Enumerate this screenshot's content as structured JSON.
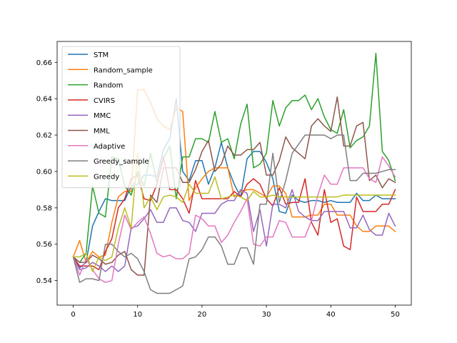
{
  "chart_data": {
    "type": "line",
    "title": "",
    "xlabel": "",
    "ylabel": "",
    "xlim": [
      -2.5,
      52.5
    ],
    "ylim": [
      0.5265,
      0.6715
    ],
    "grid": false,
    "legend_position": "top-left",
    "xticks": [
      0,
      10,
      20,
      30,
      40,
      50
    ],
    "yticks": [
      0.54,
      0.56,
      0.58,
      0.6,
      0.62,
      0.64,
      0.66
    ],
    "xtick_labels": [
      "0",
      "10",
      "20",
      "30",
      "40",
      "50"
    ],
    "ytick_labels": [
      "0.54",
      "0.56",
      "0.58",
      "0.60",
      "0.62",
      "0.64",
      "0.66"
    ],
    "x": [
      0,
      1,
      2,
      3,
      4,
      5,
      6,
      7,
      8,
      9,
      10,
      11,
      12,
      13,
      14,
      15,
      16,
      17,
      18,
      19,
      20,
      21,
      22,
      23,
      24,
      25,
      26,
      27,
      28,
      29,
      30,
      31,
      32,
      33,
      34,
      35,
      36,
      37,
      38,
      39,
      40,
      41,
      42,
      43,
      44,
      45,
      46,
      47,
      48,
      49,
      50
    ],
    "series": [
      {
        "name": "STM",
        "color": "#1f77b4",
        "values": [
          0.553,
          0.547,
          0.55,
          0.57,
          0.578,
          0.585,
          0.584,
          0.584,
          0.584,
          0.592,
          0.593,
          0.598,
          0.598,
          0.597,
          0.612,
          0.618,
          0.64,
          0.6,
          0.595,
          0.606,
          0.606,
          0.593,
          0.602,
          0.616,
          0.602,
          0.593,
          0.586,
          0.607,
          0.611,
          0.611,
          0.605,
          0.596,
          0.578,
          0.577,
          0.587,
          0.584,
          0.583,
          0.584,
          0.584,
          0.583,
          0.584,
          0.583,
          0.583,
          0.583,
          0.588,
          0.584,
          0.584,
          0.587,
          0.585,
          0.585,
          0.585
        ]
      },
      {
        "name": "Random_sample",
        "color": "#ff7f0e",
        "values": [
          0.553,
          0.562,
          0.55,
          0.556,
          0.553,
          0.554,
          0.572,
          0.586,
          0.589,
          0.589,
          0.645,
          0.645,
          0.638,
          0.629,
          0.625,
          0.623,
          0.635,
          0.633,
          0.584,
          0.591,
          0.596,
          0.6,
          0.602,
          0.602,
          0.602,
          0.586,
          0.589,
          0.59,
          0.59,
          0.588,
          0.586,
          0.592,
          0.592,
          0.588,
          0.575,
          0.575,
          0.575,
          0.576,
          0.576,
          0.582,
          0.582,
          0.576,
          0.576,
          0.576,
          0.57,
          0.567,
          0.567,
          0.57,
          0.57,
          0.57,
          0.567
        ]
      },
      {
        "name": "Random",
        "color": "#2ca02c",
        "values": [
          0.553,
          0.55,
          0.555,
          0.592,
          0.577,
          0.575,
          0.608,
          0.607,
          0.592,
          0.587,
          0.6,
          0.592,
          0.61,
          0.594,
          0.607,
          0.614,
          0.585,
          0.608,
          0.608,
          0.618,
          0.618,
          0.616,
          0.633,
          0.616,
          0.618,
          0.607,
          0.626,
          0.637,
          0.602,
          0.604,
          0.61,
          0.639,
          0.625,
          0.635,
          0.639,
          0.639,
          0.642,
          0.634,
          0.64,
          0.63,
          0.623,
          0.621,
          0.634,
          0.613,
          0.617,
          0.619,
          0.625,
          0.665,
          0.611,
          0.606,
          0.595
        ]
      },
      {
        "name": "CVIRS",
        "color": "#d62728",
        "values": [
          0.553,
          0.548,
          0.548,
          0.548,
          0.546,
          0.556,
          0.563,
          0.58,
          0.585,
          0.596,
          0.598,
          0.585,
          0.584,
          0.593,
          0.608,
          0.59,
          0.59,
          0.585,
          0.577,
          0.595,
          0.585,
          0.585,
          0.585,
          0.585,
          0.585,
          0.589,
          0.586,
          0.593,
          0.596,
          0.593,
          0.585,
          0.581,
          0.591,
          0.582,
          0.583,
          0.583,
          0.596,
          0.572,
          0.565,
          0.59,
          0.572,
          0.574,
          0.559,
          0.557,
          0.586,
          0.578,
          0.578,
          0.578,
          0.582,
          0.582,
          0.59
        ]
      },
      {
        "name": "MMC",
        "color": "#9467bd",
        "values": [
          0.553,
          0.546,
          0.547,
          0.55,
          0.548,
          0.545,
          0.548,
          0.545,
          0.548,
          0.569,
          0.57,
          0.574,
          0.579,
          0.572,
          0.572,
          0.58,
          0.58,
          0.573,
          0.572,
          0.567,
          0.577,
          0.577,
          0.577,
          0.582,
          0.584,
          0.584,
          0.59,
          0.588,
          0.567,
          0.579,
          0.559,
          0.582,
          0.582,
          0.58,
          0.59,
          0.578,
          0.575,
          0.573,
          0.573,
          0.578,
          0.578,
          0.578,
          0.578,
          0.569,
          0.569,
          0.576,
          0.568,
          0.565,
          0.565,
          0.577,
          0.57
        ]
      },
      {
        "name": "MML",
        "color": "#8c564b",
        "values": [
          0.553,
          0.55,
          0.55,
          0.554,
          0.552,
          0.549,
          0.55,
          0.554,
          0.556,
          0.546,
          0.543,
          0.543,
          0.587,
          0.583,
          0.602,
          0.602,
          0.602,
          0.594,
          0.594,
          0.601,
          0.611,
          0.617,
          0.6,
          0.604,
          0.614,
          0.609,
          0.609,
          0.612,
          0.612,
          0.616,
          0.598,
          0.598,
          0.606,
          0.619,
          0.613,
          0.61,
          0.607,
          0.625,
          0.629,
          0.625,
          0.622,
          0.641,
          0.614,
          0.614,
          0.625,
          0.627,
          0.595,
          0.598,
          0.591,
          0.596,
          0.594
        ]
      },
      {
        "name": "Adaptive",
        "color": "#e377c2",
        "values": [
          0.553,
          0.543,
          0.552,
          0.546,
          0.541,
          0.539,
          0.54,
          0.56,
          0.576,
          0.568,
          0.572,
          0.575,
          0.566,
          0.555,
          0.553,
          0.554,
          0.552,
          0.552,
          0.555,
          0.576,
          0.574,
          0.57,
          0.57,
          0.561,
          0.565,
          0.572,
          0.578,
          0.585,
          0.56,
          0.559,
          0.564,
          0.564,
          0.573,
          0.572,
          0.564,
          0.564,
          0.564,
          0.573,
          0.587,
          0.598,
          0.593,
          0.593,
          0.602,
          0.602,
          0.602,
          0.602,
          0.596,
          0.594,
          0.608,
          0.603,
          0.597
        ]
      },
      {
        "name": "Greedy_sample",
        "color": "#7f7f7f",
        "values": [
          0.553,
          0.539,
          0.541,
          0.541,
          0.54,
          0.56,
          0.56,
          0.556,
          0.553,
          0.555,
          0.552,
          0.545,
          0.535,
          0.533,
          0.533,
          0.533,
          0.535,
          0.537,
          0.552,
          0.553,
          0.557,
          0.564,
          0.564,
          0.559,
          0.549,
          0.549,
          0.558,
          0.558,
          0.549,
          0.582,
          0.582,
          0.61,
          0.583,
          0.595,
          0.61,
          0.615,
          0.62,
          0.62,
          0.62,
          0.62,
          0.618,
          0.62,
          0.62,
          0.595,
          0.595,
          0.599,
          0.599,
          0.599,
          0.6,
          0.601,
          0.601
        ]
      },
      {
        "name": "Greedy",
        "color": "#bcbd22",
        "values": [
          0.553,
          0.553,
          0.555,
          0.545,
          0.553,
          0.551,
          0.553,
          0.569,
          0.58,
          0.569,
          0.61,
          0.58,
          0.586,
          0.579,
          0.586,
          0.587,
          0.586,
          0.583,
          0.593,
          0.588,
          0.588,
          0.588,
          0.597,
          0.585,
          0.586,
          0.587,
          0.586,
          0.584,
          0.589,
          0.586,
          0.586,
          0.587,
          0.586,
          0.586,
          0.586,
          0.586,
          0.586,
          0.586,
          0.586,
          0.586,
          0.586,
          0.586,
          0.587,
          0.587,
          0.587,
          0.587,
          0.587,
          0.587,
          0.587,
          0.587,
          0.587
        ]
      }
    ]
  }
}
